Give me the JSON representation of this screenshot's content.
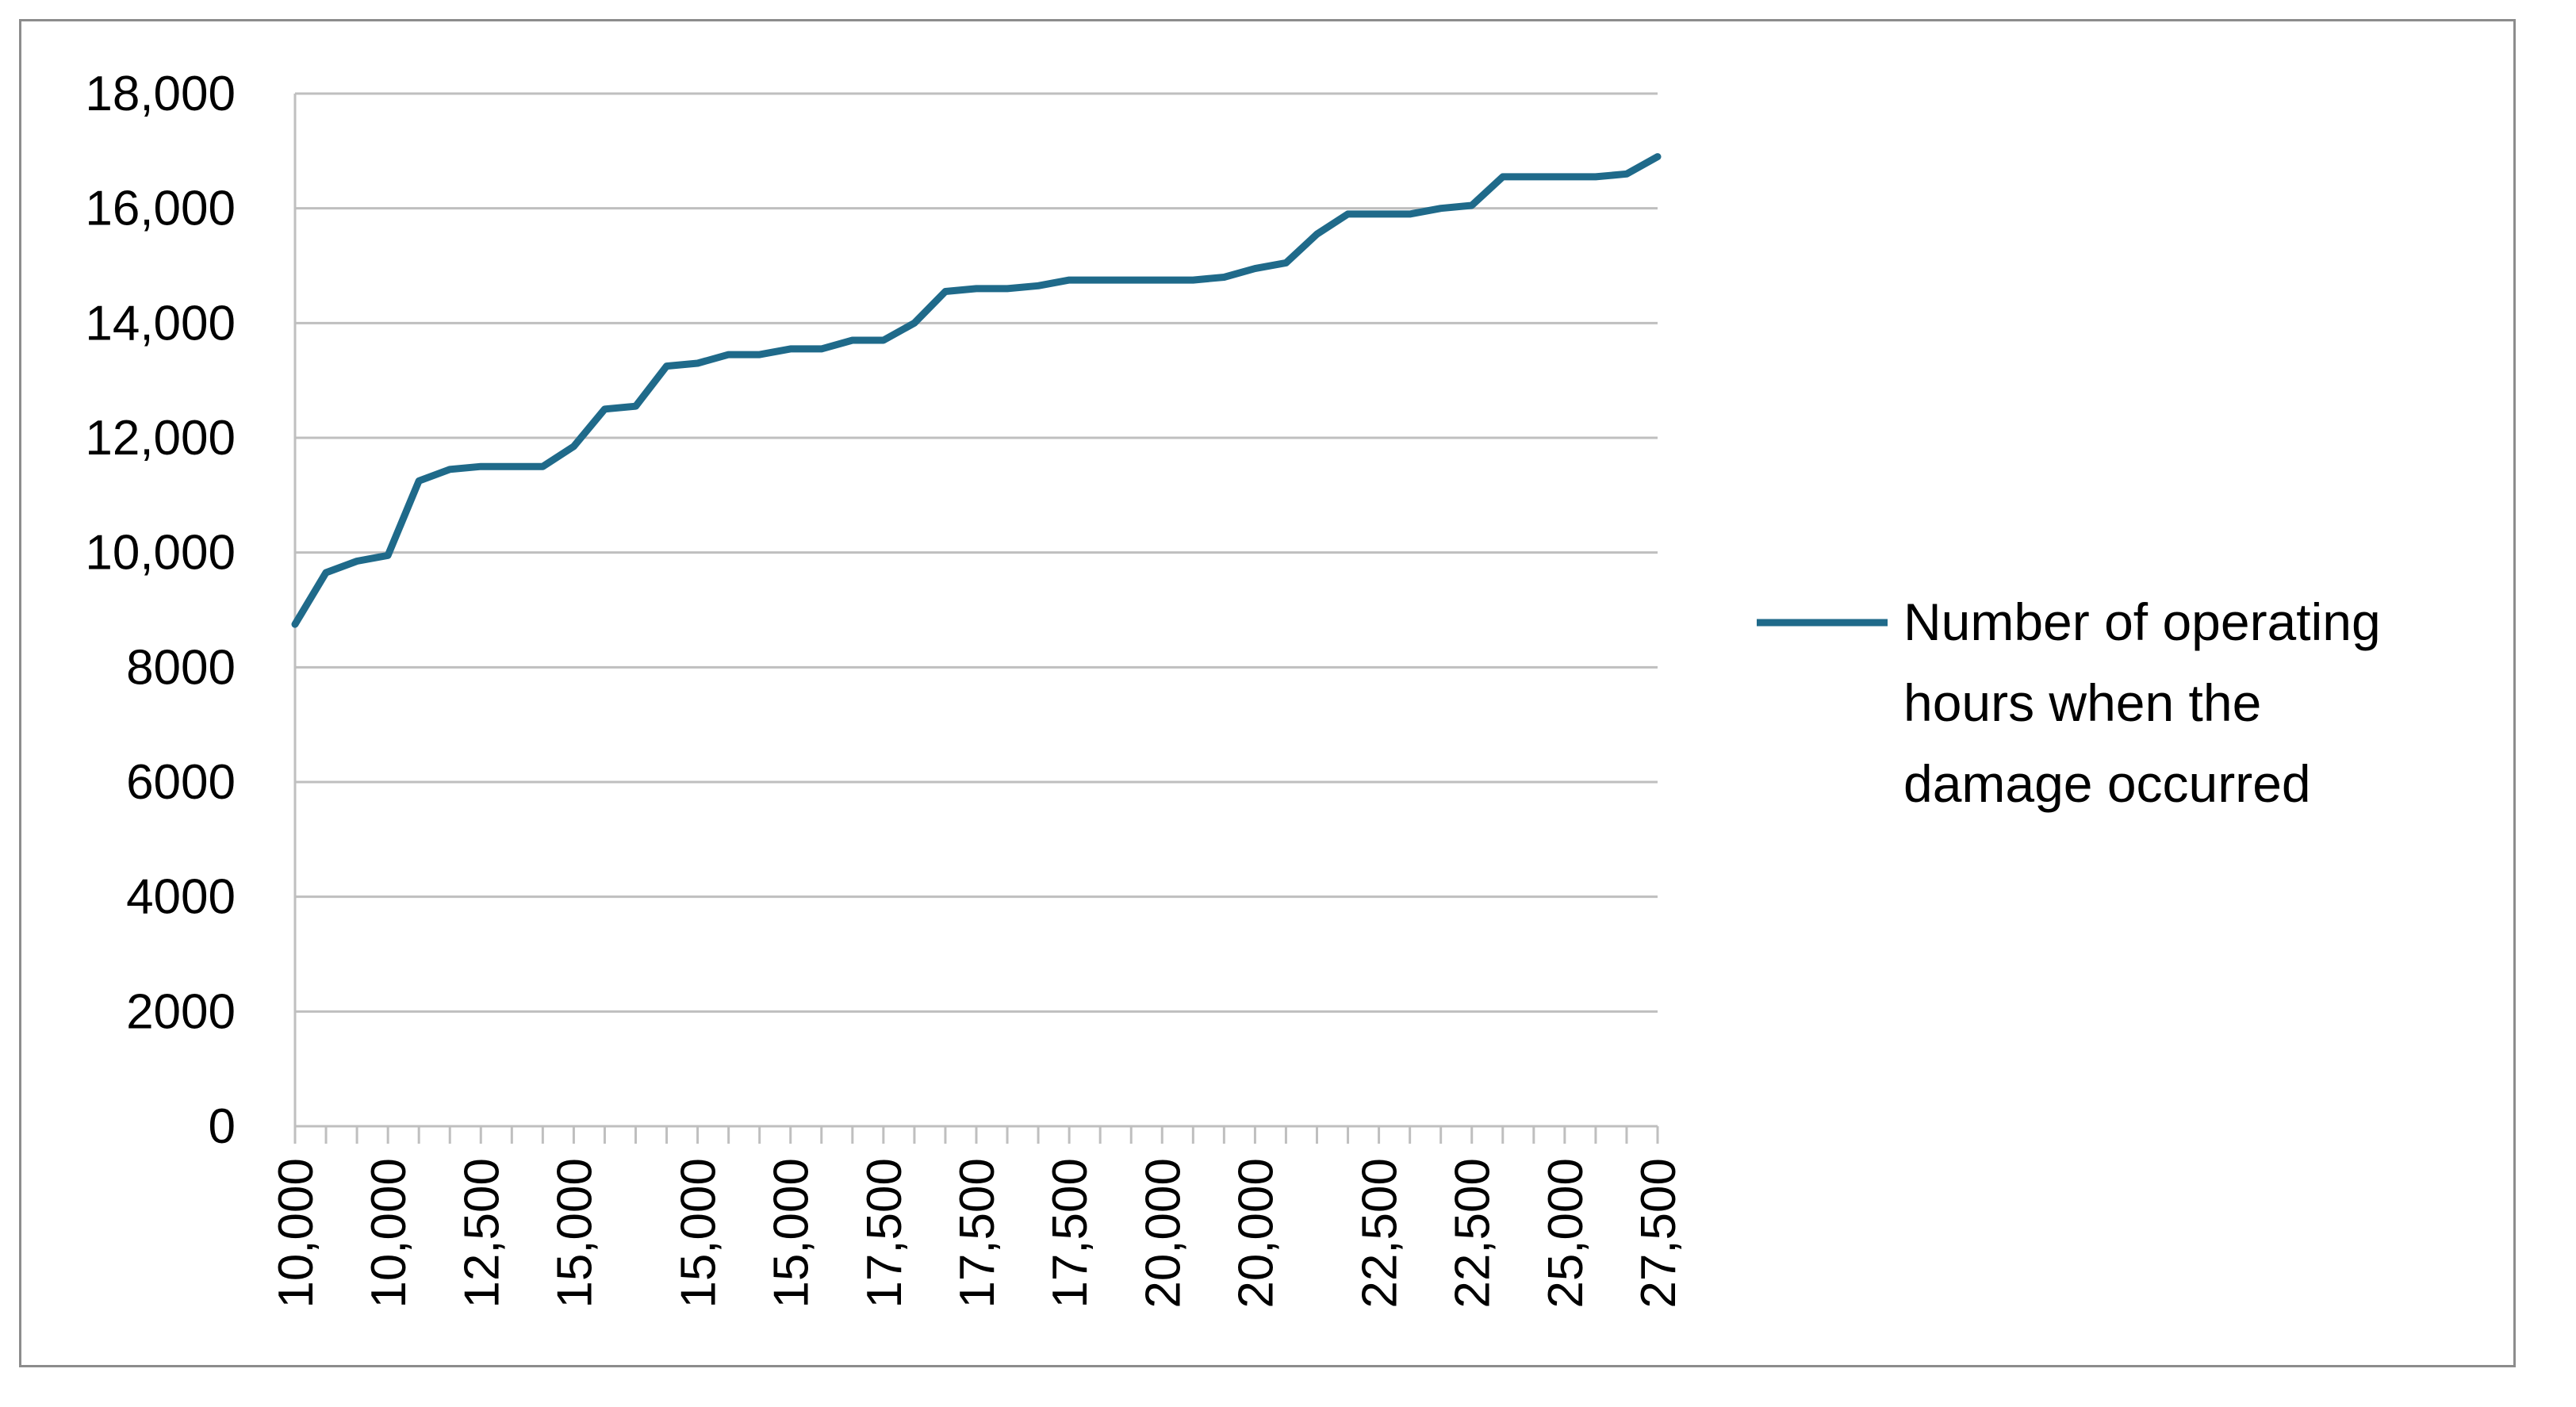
{
  "chart_data": {
    "type": "line",
    "title": "",
    "xlabel": "",
    "ylabel": "",
    "ylim": [
      0,
      18000
    ],
    "yticks": [
      "0",
      "2000",
      "4000",
      "6000",
      "8000",
      "10,000",
      "12,000",
      "14,000",
      "16,000",
      "18,000"
    ],
    "x_tick_labels": [
      "10,000",
      "10,000",
      "12,500",
      "15,000",
      "15,000",
      "15,000",
      "17,500",
      "17,500",
      "17,500",
      "20,000",
      "20,000",
      "22,500",
      "22,500",
      "25,000",
      "27,500"
    ],
    "grid": true,
    "legend_position": "right",
    "series": [
      {
        "name": "Number of operating hours when the damage occurred",
        "color": "#1f6a8a",
        "values": [
          8750,
          9650,
          9850,
          9950,
          11250,
          11450,
          11500,
          11500,
          11500,
          11850,
          12500,
          12550,
          13250,
          13300,
          13450,
          13450,
          13550,
          13550,
          13700,
          13700,
          14000,
          14550,
          14600,
          14600,
          14650,
          14750,
          14750,
          14750,
          14750,
          14750,
          14800,
          14950,
          15050,
          15550,
          15900,
          15900,
          15900,
          16000,
          16050,
          16550,
          16550,
          16550,
          16550,
          16600,
          16900
        ]
      }
    ]
  }
}
